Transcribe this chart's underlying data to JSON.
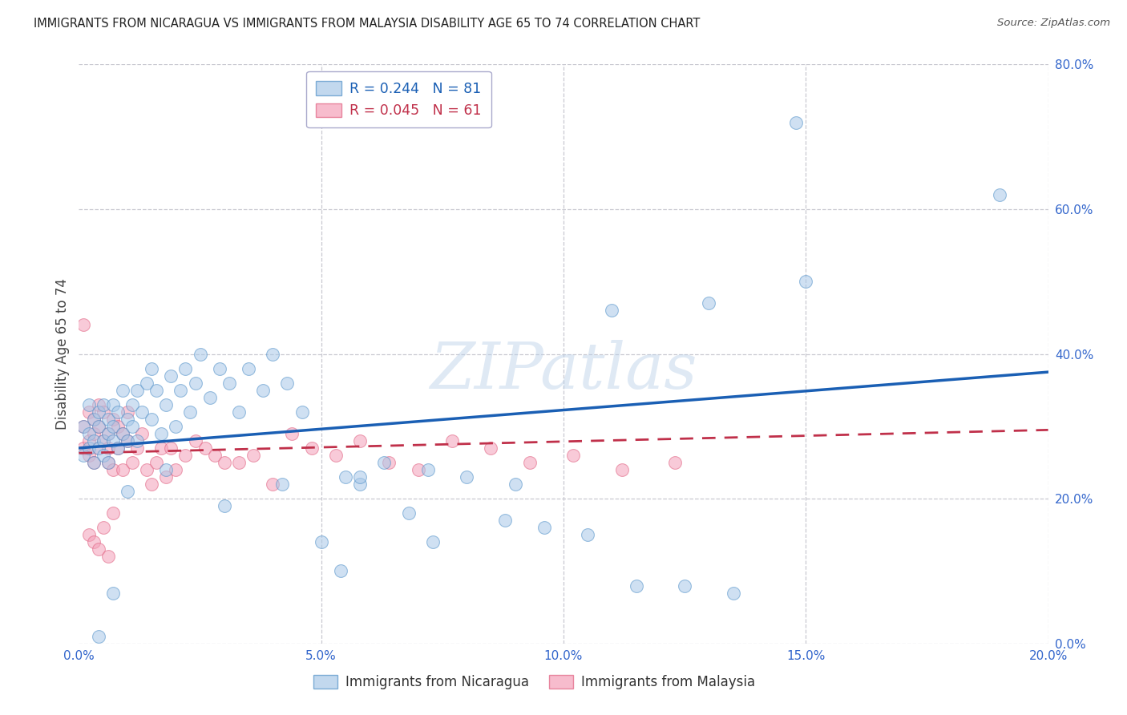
{
  "title": "IMMIGRANTS FROM NICARAGUA VS IMMIGRANTS FROM MALAYSIA DISABILITY AGE 65 TO 74 CORRELATION CHART",
  "source": "Source: ZipAtlas.com",
  "ylabel": "Disability Age 65 to 74",
  "xlim": [
    0.0,
    0.2
  ],
  "ylim": [
    0.0,
    0.8
  ],
  "xticks": [
    0.0,
    0.05,
    0.1,
    0.15,
    0.2
  ],
  "yticks": [
    0.0,
    0.2,
    0.4,
    0.6,
    0.8
  ],
  "xticklabels": [
    "0.0%",
    "5.0%",
    "10.0%",
    "15.0%",
    "20.0%"
  ],
  "yticklabels": [
    "0.0%",
    "20.0%",
    "40.0%",
    "60.0%",
    "80.0%"
  ],
  "watermark": "ZIPatlas",
  "legend_label1": "Immigrants from Nicaragua",
  "legend_label2": "Immigrants from Malaysia",
  "R1": 0.244,
  "N1": 81,
  "R2": 0.045,
  "N2": 61,
  "color1": "#a8c8e8",
  "color2": "#f4a0b8",
  "trendline1_color": "#1a5fb4",
  "trendline2_color": "#c0304a",
  "nic_trendline_y0": 0.27,
  "nic_trendline_y1": 0.375,
  "mal_trendline_y0": 0.263,
  "mal_trendline_y1": 0.295,
  "nicaragua_x": [
    0.001,
    0.001,
    0.002,
    0.002,
    0.002,
    0.003,
    0.003,
    0.003,
    0.004,
    0.004,
    0.004,
    0.005,
    0.005,
    0.005,
    0.006,
    0.006,
    0.006,
    0.007,
    0.007,
    0.007,
    0.008,
    0.008,
    0.009,
    0.009,
    0.01,
    0.01,
    0.011,
    0.011,
    0.012,
    0.012,
    0.013,
    0.014,
    0.015,
    0.015,
    0.016,
    0.017,
    0.018,
    0.019,
    0.02,
    0.021,
    0.022,
    0.023,
    0.024,
    0.025,
    0.027,
    0.029,
    0.031,
    0.033,
    0.035,
    0.038,
    0.04,
    0.043,
    0.046,
    0.05,
    0.054,
    0.058,
    0.063,
    0.068,
    0.073,
    0.08,
    0.088,
    0.096,
    0.105,
    0.115,
    0.125,
    0.135,
    0.148,
    0.058,
    0.042,
    0.03,
    0.018,
    0.01,
    0.007,
    0.004,
    0.19,
    0.15,
    0.13,
    0.11,
    0.09,
    0.072,
    0.055
  ],
  "nicaragua_y": [
    0.3,
    0.26,
    0.29,
    0.33,
    0.27,
    0.31,
    0.28,
    0.25,
    0.32,
    0.27,
    0.3,
    0.28,
    0.33,
    0.26,
    0.29,
    0.31,
    0.25,
    0.3,
    0.28,
    0.33,
    0.32,
    0.27,
    0.29,
    0.35,
    0.31,
    0.28,
    0.33,
    0.3,
    0.35,
    0.28,
    0.32,
    0.36,
    0.31,
    0.38,
    0.35,
    0.29,
    0.33,
    0.37,
    0.3,
    0.35,
    0.38,
    0.32,
    0.36,
    0.4,
    0.34,
    0.38,
    0.36,
    0.32,
    0.38,
    0.35,
    0.4,
    0.36,
    0.32,
    0.14,
    0.1,
    0.22,
    0.25,
    0.18,
    0.14,
    0.23,
    0.17,
    0.16,
    0.15,
    0.08,
    0.08,
    0.07,
    0.72,
    0.23,
    0.22,
    0.19,
    0.24,
    0.21,
    0.07,
    0.01,
    0.62,
    0.5,
    0.47,
    0.46,
    0.22,
    0.24,
    0.23
  ],
  "malaysia_x": [
    0.001,
    0.001,
    0.002,
    0.002,
    0.002,
    0.003,
    0.003,
    0.003,
    0.004,
    0.004,
    0.004,
    0.005,
    0.005,
    0.006,
    0.006,
    0.006,
    0.007,
    0.007,
    0.008,
    0.008,
    0.009,
    0.009,
    0.01,
    0.01,
    0.011,
    0.012,
    0.013,
    0.014,
    0.015,
    0.016,
    0.017,
    0.018,
    0.019,
    0.02,
    0.022,
    0.024,
    0.026,
    0.028,
    0.03,
    0.033,
    0.036,
    0.04,
    0.044,
    0.048,
    0.053,
    0.058,
    0.064,
    0.07,
    0.077,
    0.085,
    0.093,
    0.102,
    0.112,
    0.123,
    0.002,
    0.003,
    0.004,
    0.005,
    0.006,
    0.007,
    0.001
  ],
  "malaysia_y": [
    0.27,
    0.3,
    0.28,
    0.32,
    0.26,
    0.29,
    0.31,
    0.25,
    0.33,
    0.27,
    0.3,
    0.28,
    0.32,
    0.25,
    0.29,
    0.27,
    0.31,
    0.24,
    0.3,
    0.27,
    0.29,
    0.24,
    0.28,
    0.32,
    0.25,
    0.27,
    0.29,
    0.24,
    0.22,
    0.25,
    0.27,
    0.23,
    0.27,
    0.24,
    0.26,
    0.28,
    0.27,
    0.26,
    0.25,
    0.25,
    0.26,
    0.22,
    0.29,
    0.27,
    0.26,
    0.28,
    0.25,
    0.24,
    0.28,
    0.27,
    0.25,
    0.26,
    0.24,
    0.25,
    0.15,
    0.14,
    0.13,
    0.16,
    0.12,
    0.18,
    0.44
  ]
}
